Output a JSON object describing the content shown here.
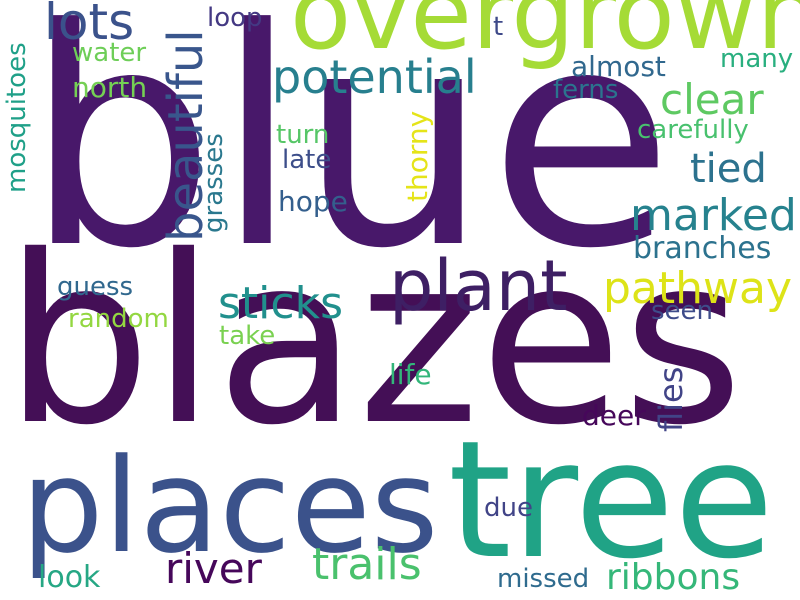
{
  "word_cloud": {
    "words": [
      {
        "text": "blue",
        "color": "#48186a"
      },
      {
        "text": "blazes",
        "color": "#440f56"
      },
      {
        "text": "overgrown",
        "color": "#a5db36"
      },
      {
        "text": "places",
        "color": "#3b528b"
      },
      {
        "text": "tree",
        "color": "#20a386"
      },
      {
        "text": "plant",
        "color": "#3e1f64"
      },
      {
        "text": "potential",
        "color": "#277f8e"
      },
      {
        "text": "lots",
        "color": "#3b528b"
      },
      {
        "text": "beautiful",
        "color": "#39568c"
      },
      {
        "text": "clear",
        "color": "#5ec962"
      },
      {
        "text": "marked",
        "color": "#26828e"
      },
      {
        "text": "pathway",
        "color": "#dde318"
      },
      {
        "text": "sticks",
        "color": "#21908d"
      },
      {
        "text": "tied",
        "color": "#2c728e"
      },
      {
        "text": "river",
        "color": "#46075a"
      },
      {
        "text": "trails",
        "color": "#4ac16d"
      },
      {
        "text": "ribbons",
        "color": "#35b779"
      },
      {
        "text": "mosquitoes",
        "color": "#1fa088"
      },
      {
        "text": "grasses",
        "color": "#2a788e"
      },
      {
        "text": "thorny",
        "color": "#e5e419"
      },
      {
        "text": "flies",
        "color": "#414487"
      },
      {
        "text": "branches",
        "color": "#2c728e"
      },
      {
        "text": "carefully",
        "color": "#48c16e"
      },
      {
        "text": "almost",
        "color": "#31688e"
      },
      {
        "text": "ferns",
        "color": "#2b748e"
      },
      {
        "text": "many",
        "color": "#29af7f"
      },
      {
        "text": "water",
        "color": "#6ece58"
      },
      {
        "text": "north",
        "color": "#75d054"
      },
      {
        "text": "loop",
        "color": "#443983"
      },
      {
        "text": "t",
        "color": "#3e4989"
      },
      {
        "text": "turn",
        "color": "#56c667"
      },
      {
        "text": "late",
        "color": "#3d4e8a"
      },
      {
        "text": "hope",
        "color": "#345f8d"
      },
      {
        "text": "guess",
        "color": "#31688e"
      },
      {
        "text": "random",
        "color": "#93d741"
      },
      {
        "text": "take",
        "color": "#7ad151"
      },
      {
        "text": "seen",
        "color": "#3e4c8a"
      },
      {
        "text": "life",
        "color": "#32b67a"
      },
      {
        "text": "deer",
        "color": "#46075a"
      },
      {
        "text": "due",
        "color": "#414487"
      },
      {
        "text": "look",
        "color": "#26a784"
      },
      {
        "text": "missed",
        "color": "#2f6b8e"
      }
    ]
  }
}
